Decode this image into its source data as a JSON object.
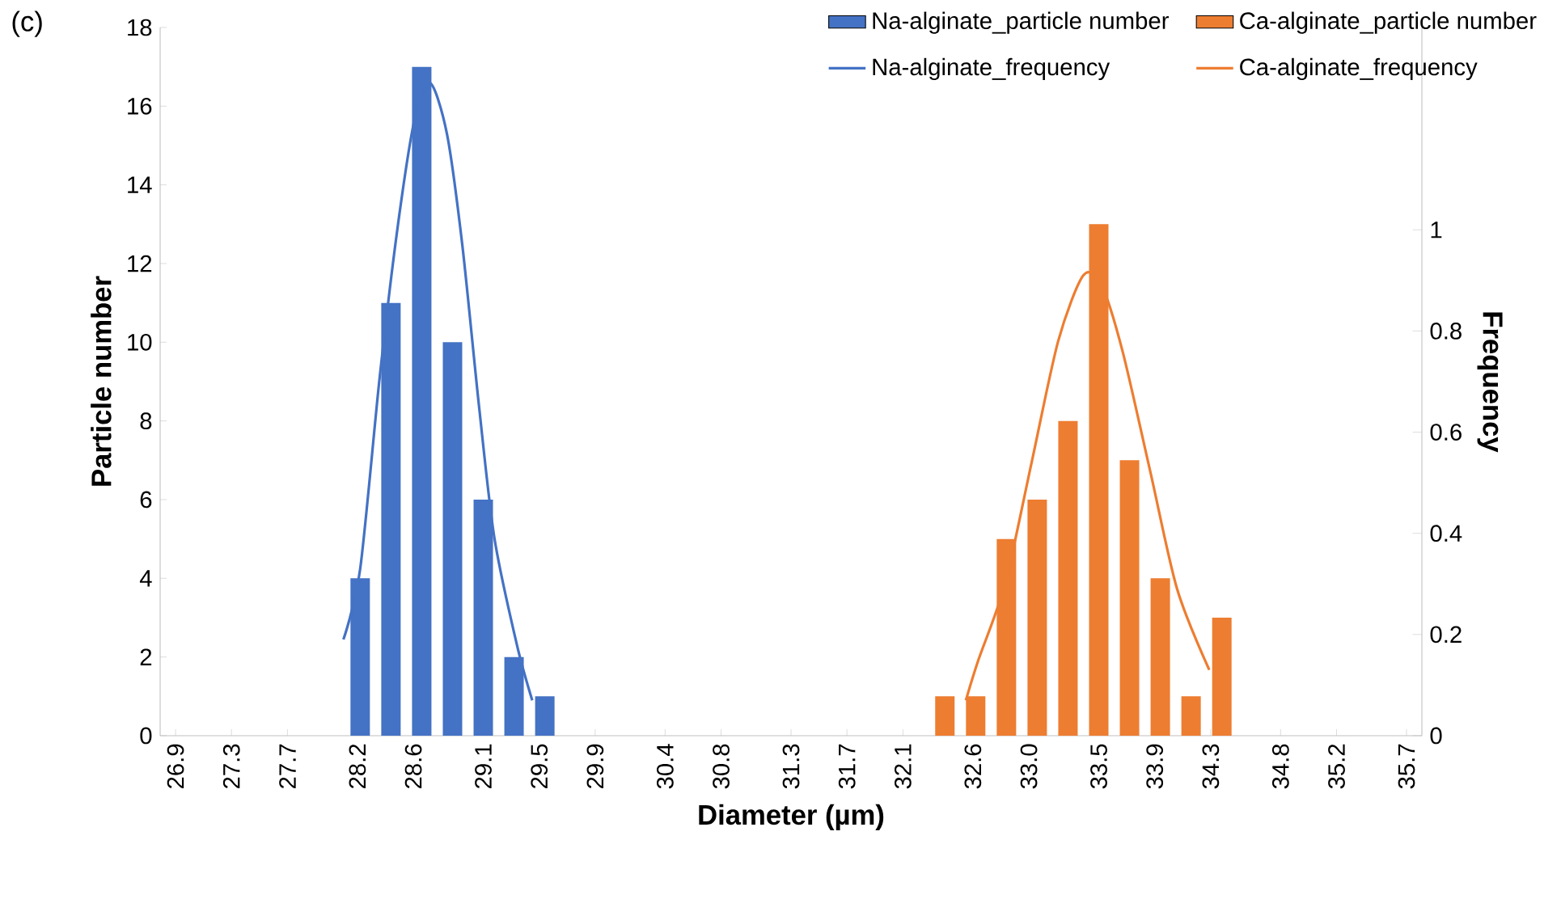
{
  "chart_data": {
    "type": "bar",
    "annotations": [
      "(c)"
    ],
    "xlabel": "Diameter (µm)",
    "ylabel": "Particle number",
    "y2label": "Frequency",
    "xlim": [
      26.79,
      35.81
    ],
    "xticks": [
      26.9,
      27.3,
      27.7,
      28.2,
      28.6,
      29.1,
      29.5,
      29.9,
      30.4,
      30.8,
      31.3,
      31.7,
      32.1,
      32.6,
      {
        "value": 33,
        "label": "33.0"
      },
      33.5,
      33.9,
      34.3,
      34.8,
      35.2,
      35.7
    ],
    "ylim": [
      0,
      18
    ],
    "yticks": [
      0,
      2,
      4,
      6,
      8,
      10,
      12,
      14,
      16,
      18
    ],
    "y2lim": [
      0,
      1.4
    ],
    "y2ticks": [
      0,
      0.2,
      0.4,
      0.6,
      0.8,
      1
    ],
    "legend": "top right",
    "series": [
      {
        "name": "Na-alginate_particle number",
        "color": "#4472c4",
        "x": [
          28.22,
          28.44,
          28.66,
          28.88,
          29.1,
          29.32,
          29.54
        ],
        "values": [
          4,
          11,
          17,
          10,
          6,
          2,
          1
        ]
      },
      {
        "name": "Ca-alginate_particle number",
        "color": "#ed7d31",
        "x": [
          32.4,
          32.62,
          32.84,
          33.06,
          33.28,
          33.5,
          33.72,
          33.94,
          34.16,
          34.38
        ],
        "values": [
          1,
          1,
          5,
          6,
          8,
          13,
          7,
          4,
          1,
          3
        ]
      },
      {
        "name": "Na-alginate_frequency",
        "type": "line",
        "axis": "y2",
        "color": "#4472c4",
        "x": [
          28.1,
          28.22,
          28.36,
          28.49,
          28.61,
          28.72,
          28.84,
          28.95,
          29.07,
          29.18,
          29.34,
          29.45
        ],
        "values": [
          0.19,
          0.33,
          0.71,
          1.01,
          1.22,
          1.29,
          1.19,
          0.97,
          0.65,
          0.39,
          0.18,
          0.07
        ]
      },
      {
        "name": "Ca-alginate_frequency",
        "type": "line",
        "axis": "y2",
        "color": "#ed7d31",
        "x": [
          32.55,
          32.64,
          32.83,
          33.02,
          33.21,
          33.39,
          33.52,
          33.67,
          33.87,
          34.06,
          34.29
        ],
        "values": [
          0.07,
          0.15,
          0.3,
          0.54,
          0.78,
          0.91,
          0.89,
          0.76,
          0.52,
          0.29,
          0.13
        ]
      }
    ]
  }
}
